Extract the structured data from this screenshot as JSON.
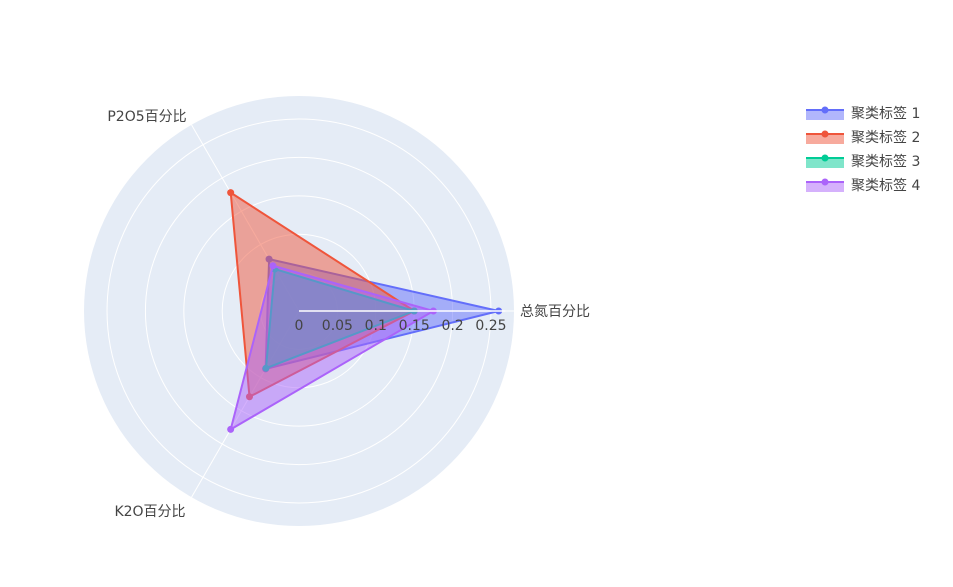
{
  "chart_data": {
    "type": "radar",
    "theta": [
      "总氮百分比",
      "P2O5百分比",
      "K2O百分比"
    ],
    "radial_ticks": [
      "0",
      "0.05",
      "0.1",
      "0.15",
      "0.2",
      "0.25"
    ],
    "radial_range": [
      0,
      0.28
    ],
    "grid": true,
    "legend_position": "top-right",
    "series": [
      {
        "name": "聚类标签 1",
        "color": "#636efa",
        "values": [
          0.26,
          0.078,
          0.087
        ]
      },
      {
        "name": "聚类标签 2",
        "color": "#ef553b",
        "values": [
          0.15,
          0.178,
          0.129
        ]
      },
      {
        "name": "聚类标签 3",
        "color": "#00cc96",
        "values": [
          0.15,
          0.063,
          0.086
        ]
      },
      {
        "name": "聚类标签 4",
        "color": "#ab63fa",
        "values": [
          0.175,
          0.068,
          0.178
        ]
      }
    ]
  }
}
